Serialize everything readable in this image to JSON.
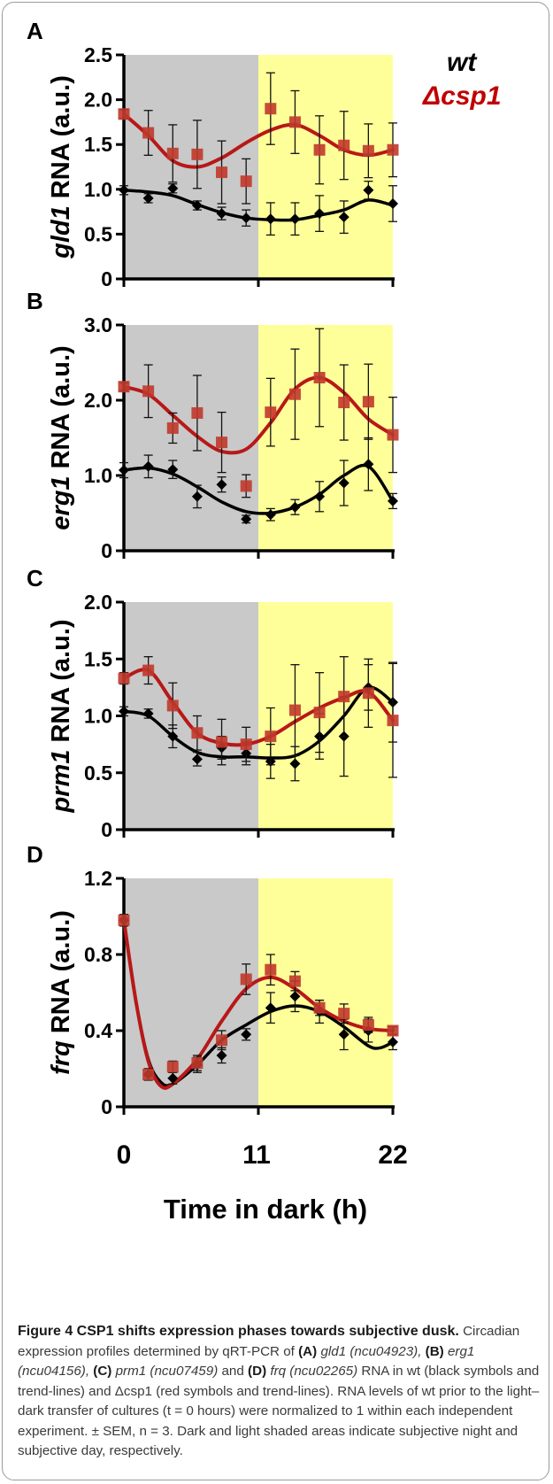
{
  "figure": {
    "legend": {
      "wt": "wt",
      "dcsp1": "Δcsp1"
    },
    "x_axis": {
      "ticks": [
        "0",
        "11",
        "22"
      ],
      "label": "Time in dark (h)"
    },
    "colors": {
      "wt": "#000000",
      "dcsp1": "#c0392b",
      "wt_line": "#000000",
      "dcsp1_line": "#b81818",
      "night": "#c9c9c9",
      "day": "#ffff99"
    }
  },
  "caption": {
    "title": "Figure 4 CSP1 shifts expression phases towards subjective dusk.",
    "text_1": " Circadian expression profiles determined by qRT-PCR of ",
    "a": "(A)",
    "gene_a": " gld1 (ncu04923), ",
    "b": "(B)",
    "gene_b": " erg1 (ncu04156), ",
    "c": "(C)",
    "gene_c": " prm1 (ncu07459)",
    "and": " and ",
    "d": "(D)",
    "gene_d": " frq (ncu02265)",
    "text_2": " RNA in wt (black symbols and trend-lines) and Δcsp1 (red symbols and trend-lines). RNA levels of wt prior to the light–dark transfer of cultures (t = 0 hours) were normalized to 1 within each independent experiment. ± SEM, n = 3. Dark and light shaded areas indicate subjective night and subjective day, respectively."
  },
  "chart_data": [
    {
      "panel": "A",
      "type": "scatter",
      "ylabel_gene": "gld1",
      "ylabel_rest": " RNA (a.u.)",
      "ylim": [
        0,
        2.5
      ],
      "yticks": [
        "0",
        "0.5",
        "1.0",
        "1.5",
        "2.0",
        "2.5"
      ],
      "xlim": [
        0,
        22
      ],
      "shading": {
        "night": [
          0,
          11
        ],
        "day": [
          11,
          22
        ]
      },
      "series": [
        {
          "name": "wt",
          "x": [
            0,
            2,
            4,
            6,
            8,
            10,
            12,
            14,
            16,
            18,
            20,
            22
          ],
          "y": [
            0.99,
            0.9,
            1.01,
            0.82,
            0.73,
            0.68,
            0.67,
            0.67,
            0.73,
            0.69,
            0.99,
            0.84
          ],
          "err": [
            0.05,
            0.05,
            0.05,
            0.05,
            0.07,
            0.09,
            0.18,
            0.18,
            0.2,
            0.18,
            0.1,
            0.2
          ]
        },
        {
          "name": "Δcsp1",
          "x": [
            0,
            2,
            4,
            6,
            8,
            10,
            12,
            14,
            16,
            18,
            20,
            22
          ],
          "y": [
            1.84,
            1.63,
            1.4,
            1.39,
            1.19,
            1.09,
            1.9,
            1.75,
            1.44,
            1.49,
            1.43,
            1.44
          ],
          "err": [
            0.05,
            0.25,
            0.32,
            0.38,
            0.35,
            0.25,
            0.4,
            0.35,
            0.38,
            0.38,
            0.3,
            0.3
          ]
        }
      ],
      "trend": [
        {
          "x": [
            0,
            2,
            4,
            6,
            8,
            10,
            12,
            14,
            16,
            18,
            20,
            22
          ],
          "y": [
            0.99,
            0.97,
            0.93,
            0.83,
            0.74,
            0.68,
            0.66,
            0.66,
            0.71,
            0.77,
            0.88,
            0.82
          ]
        },
        {
          "x": [
            0,
            2,
            4,
            6,
            8,
            10,
            12,
            14,
            16,
            18,
            20,
            22
          ],
          "y": [
            1.84,
            1.6,
            1.32,
            1.25,
            1.35,
            1.52,
            1.66,
            1.72,
            1.6,
            1.44,
            1.38,
            1.44
          ]
        }
      ]
    },
    {
      "panel": "B",
      "type": "scatter",
      "ylabel_gene": "erg1",
      "ylabel_rest": " RNA (a.u.)",
      "ylim": [
        0,
        3.0
      ],
      "yticks": [
        "0",
        "1.0",
        "2.0",
        "3.0"
      ],
      "xlim": [
        0,
        22
      ],
      "shading": {
        "night": [
          0,
          11
        ],
        "day": [
          11,
          22
        ]
      },
      "series": [
        {
          "name": "wt",
          "x": [
            0,
            2,
            4,
            6,
            8,
            10,
            12,
            14,
            16,
            18,
            20,
            22
          ],
          "y": [
            1.07,
            1.12,
            1.08,
            0.72,
            0.88,
            0.42,
            0.48,
            0.58,
            0.72,
            0.9,
            1.15,
            0.66
          ],
          "err": [
            0.1,
            0.15,
            0.12,
            0.15,
            0.1,
            0.05,
            0.08,
            0.1,
            0.2,
            0.3,
            0.35,
            0.1
          ]
        },
        {
          "name": "Δcsp1",
          "x": [
            0,
            2,
            4,
            6,
            8,
            10,
            12,
            14,
            16,
            18,
            20,
            22
          ],
          "y": [
            2.18,
            2.12,
            1.63,
            1.83,
            1.44,
            0.86,
            1.84,
            2.08,
            2.3,
            1.97,
            1.98,
            1.54
          ],
          "err": [
            0.05,
            0.35,
            0.2,
            0.5,
            0.4,
            0.15,
            0.45,
            0.6,
            0.65,
            0.5,
            0.5,
            0.5
          ]
        }
      ],
      "trend": [
        {
          "x": [
            0,
            2,
            4,
            6,
            8,
            10,
            12,
            14,
            16,
            18,
            20,
            22
          ],
          "y": [
            1.07,
            1.1,
            1.02,
            0.85,
            0.65,
            0.52,
            0.5,
            0.58,
            0.75,
            1.0,
            1.12,
            0.66
          ]
        },
        {
          "x": [
            0,
            2,
            4,
            6,
            8,
            10,
            12,
            14,
            16,
            18,
            20,
            22
          ],
          "y": [
            2.18,
            2.08,
            1.8,
            1.52,
            1.32,
            1.35,
            1.7,
            2.15,
            2.3,
            2.1,
            1.75,
            1.54
          ]
        }
      ]
    },
    {
      "panel": "C",
      "type": "scatter",
      "ylabel_gene": "prm1",
      "ylabel_rest": " RNA (a.u.)",
      "ylim": [
        0,
        2.0
      ],
      "yticks": [
        "0",
        "0.5",
        "1.0",
        "1.5",
        "2.0"
      ],
      "xlim": [
        0,
        22
      ],
      "shading": {
        "night": [
          0,
          11
        ],
        "day": [
          11,
          22
        ]
      },
      "series": [
        {
          "name": "wt",
          "x": [
            0,
            2,
            4,
            6,
            8,
            10,
            12,
            14,
            16,
            18,
            20,
            22
          ],
          "y": [
            1.04,
            1.02,
            0.82,
            0.62,
            0.72,
            0.67,
            0.6,
            0.58,
            0.82,
            0.82,
            1.25,
            1.12
          ],
          "err": [
            0.04,
            0.04,
            0.1,
            0.06,
            0.1,
            0.1,
            0.15,
            0.15,
            0.2,
            0.35,
            0.2,
            0.35
          ]
        },
        {
          "name": "Δcsp1",
          "x": [
            0,
            2,
            4,
            6,
            8,
            10,
            12,
            14,
            16,
            18,
            20,
            22
          ],
          "y": [
            1.33,
            1.4,
            1.09,
            0.85,
            0.77,
            0.75,
            0.82,
            1.05,
            1.03,
            1.17,
            1.2,
            0.96
          ],
          "err": [
            0.05,
            0.12,
            0.2,
            0.15,
            0.2,
            0.15,
            0.25,
            0.4,
            0.35,
            0.35,
            0.3,
            0.5
          ]
        }
      ],
      "trend": [
        {
          "x": [
            0,
            2,
            4,
            6,
            8,
            10,
            12,
            14,
            16,
            18,
            20,
            22
          ],
          "y": [
            1.04,
            1.0,
            0.82,
            0.68,
            0.64,
            0.64,
            0.63,
            0.65,
            0.78,
            1.0,
            1.25,
            1.12
          ]
        },
        {
          "x": [
            0,
            2,
            4,
            6,
            8,
            10,
            12,
            14,
            16,
            18,
            20,
            22
          ],
          "y": [
            1.33,
            1.4,
            1.12,
            0.85,
            0.76,
            0.75,
            0.82,
            0.95,
            1.07,
            1.16,
            1.21,
            0.96
          ]
        }
      ]
    },
    {
      "panel": "D",
      "type": "scatter",
      "ylabel_gene": "frq",
      "ylabel_rest": " RNA (a.u.)",
      "ylim": [
        0,
        1.2
      ],
      "yticks": [
        "0",
        "0.4",
        "0.8",
        "1.2"
      ],
      "xlim": [
        0,
        22
      ],
      "shading": {
        "night": [
          0,
          11
        ],
        "day": [
          11,
          22
        ]
      },
      "series": [
        {
          "name": "wt",
          "x": [
            0,
            2,
            4,
            6,
            8,
            10,
            12,
            14,
            16,
            18,
            20,
            22
          ],
          "y": [
            0.98,
            0.17,
            0.15,
            0.22,
            0.27,
            0.38,
            0.52,
            0.58,
            0.5,
            0.38,
            0.4,
            0.34
          ],
          "err": [
            0.03,
            0.03,
            0.03,
            0.04,
            0.04,
            0.03,
            0.08,
            0.08,
            0.06,
            0.08,
            0.06,
            0.04
          ]
        },
        {
          "name": "Δcsp1",
          "x": [
            0,
            2,
            4,
            6,
            8,
            10,
            12,
            14,
            16,
            18,
            20,
            22
          ],
          "y": [
            0.98,
            0.17,
            0.21,
            0.23,
            0.35,
            0.67,
            0.72,
            0.66,
            0.52,
            0.49,
            0.43,
            0.4
          ],
          "err": [
            0.03,
            0.03,
            0.03,
            0.04,
            0.05,
            0.08,
            0.08,
            0.05,
            0.04,
            0.05,
            0.04,
            0.02
          ]
        }
      ],
      "trend": [
        {
          "x": [
            0,
            1,
            2,
            3,
            4,
            6,
            8,
            10,
            12,
            14,
            16,
            18,
            20,
            21,
            22
          ],
          "y": [
            0.98,
            0.55,
            0.25,
            0.13,
            0.12,
            0.22,
            0.35,
            0.43,
            0.5,
            0.53,
            0.5,
            0.42,
            0.32,
            0.31,
            0.34
          ]
        },
        {
          "x": [
            0,
            1,
            2,
            3,
            4,
            6,
            8,
            10,
            12,
            14,
            16,
            18,
            20,
            22
          ],
          "y": [
            0.98,
            0.55,
            0.24,
            0.11,
            0.12,
            0.25,
            0.45,
            0.62,
            0.68,
            0.62,
            0.52,
            0.45,
            0.41,
            0.4
          ]
        }
      ]
    }
  ]
}
